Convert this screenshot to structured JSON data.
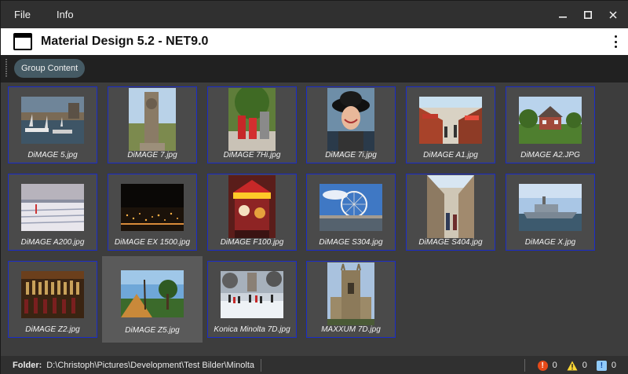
{
  "menu": {
    "items": [
      "File",
      "Info"
    ]
  },
  "window_controls": [
    "minimize-icon",
    "maximize-icon",
    "close-icon"
  ],
  "appbar": {
    "title": "Material Design 5.2 - NET9.0",
    "icon": "window-icon",
    "menu_icon": "more-vert-icon"
  },
  "toolbar": {
    "chip_label": "Group Content"
  },
  "images": [
    {
      "caption": "DiMAGE 5.jpg",
      "subject": "harbor"
    },
    {
      "caption": "DiMAGE 7.jpg",
      "subject": "statue"
    },
    {
      "caption": "DiMAGE 7Hi.jpg",
      "subject": "phonebooth"
    },
    {
      "caption": "DiMAGE 7i.jpg",
      "subject": "portrait"
    },
    {
      "caption": "DiMAGE A1.jpg",
      "subject": "street"
    },
    {
      "caption": "DiMAGE A2.JPG",
      "subject": "house"
    },
    {
      "caption": "DiMAGE A200.jpg",
      "subject": "beach"
    },
    {
      "caption": "DiMAGE EX 1500.jpg",
      "subject": "night"
    },
    {
      "caption": "DiMAGE F100.jpg",
      "subject": "carousel"
    },
    {
      "caption": "DiMAGE S304.jpg",
      "subject": "ferris-wheel"
    },
    {
      "caption": "DiMAGE S404.jpg",
      "subject": "alley"
    },
    {
      "caption": "DiMAGE X.jpg",
      "subject": "ship"
    },
    {
      "caption": "DiMAGE Z2.jpg",
      "subject": "bar"
    },
    {
      "caption": "DiMAGE Z5.jpg",
      "subject": "garden",
      "selected": true
    },
    {
      "caption": "Konica Minolta 7D.jpg",
      "subject": "skating"
    },
    {
      "caption": "MAXXUM 7D.jpg",
      "subject": "cathedral"
    }
  ],
  "status": {
    "folder_label": "Folder:",
    "folder_path": "D:\\Christoph\\Pictures\\Development\\Test Bilder\\Minolta",
    "errors": "0",
    "warnings": "0",
    "infos": "0"
  },
  "colors": {
    "tile_border": "#1a2cc9",
    "chip_bg": "#455a64",
    "error": "#e64a19",
    "warning": "#fdd835",
    "info": "#90caf9"
  }
}
